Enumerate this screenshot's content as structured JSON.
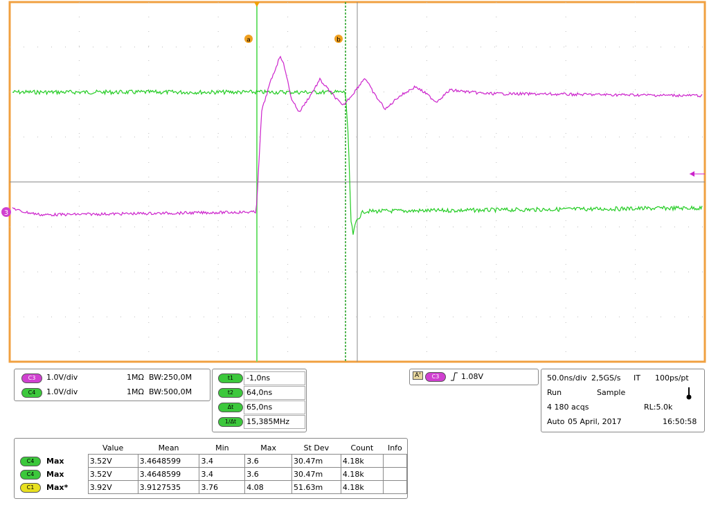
{
  "screen": {
    "markers": {
      "cursor_a": "a",
      "cursor_b": "b",
      "reference": "3"
    },
    "channels": [
      {
        "badge": "C3",
        "scale": "1.0V/div",
        "impedance": "1MΩ",
        "bandwidth": "BW:250,0M"
      },
      {
        "badge": "C4",
        "scale": "1.0V/div",
        "impedance": "1MΩ",
        "bandwidth": "BW:500,0M"
      }
    ],
    "cursors": [
      {
        "label": "t1",
        "value": "-1,0ns"
      },
      {
        "label": "t2",
        "value": "64,0ns"
      },
      {
        "label": "Δt",
        "value": "65,0ns"
      },
      {
        "label": "1/Δt",
        "value": "15,385MHz"
      }
    ],
    "trigger": {
      "source": "A'",
      "channel": "C3",
      "level": "1.08V"
    },
    "acquisition": [
      [
        "50.0ns/div",
        "2,5GS/s",
        "IT",
        "100ps/pt"
      ],
      [
        "Run",
        "Sample"
      ],
      [
        "4 180 acqs",
        "RL:5.0k"
      ],
      [
        "Auto",
        "05 April, 2017",
        "16:50:58"
      ]
    ],
    "measurements": {
      "headers": [
        "Value",
        "Mean",
        "Min",
        "Max",
        "St Dev",
        "Count",
        "Info"
      ],
      "rows": [
        {
          "badge": "C4",
          "name": "Max",
          "cells": [
            "3.52V",
            "3.4648599",
            "3.4",
            "3.6",
            "30.47m",
            "4.18k",
            ""
          ]
        },
        {
          "badge": "C4",
          "name": "Max",
          "cells": [
            "3.52V",
            "3.4648599",
            "3.4",
            "3.6",
            "30.47m",
            "4.18k",
            ""
          ]
        },
        {
          "badge": "C1",
          "name": "Max*",
          "cells": [
            "3.92V",
            "3.9127535",
            "3.76",
            "4.08",
            "51.63m",
            "4.18k",
            ""
          ]
        }
      ]
    }
  }
}
